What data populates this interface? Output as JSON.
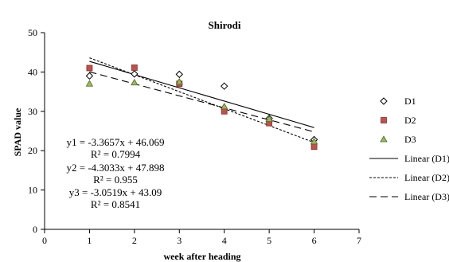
{
  "chart_data": {
    "type": "scatter",
    "title": "Shirodi",
    "xlabel": "week after heading",
    "ylabel": "SPAD value",
    "xlim": [
      0,
      7
    ],
    "ylim": [
      0,
      50
    ],
    "x_ticks": [
      0,
      1,
      2,
      3,
      4,
      5,
      6,
      7
    ],
    "y_ticks": [
      0,
      10,
      20,
      30,
      40,
      50
    ],
    "grid": false,
    "legend_position": "right",
    "series": [
      {
        "name": "D1",
        "marker": "diamond",
        "color": "#ffffff",
        "stroke": "#000000",
        "x": [
          1,
          2,
          3,
          4,
          5,
          6
        ],
        "y": [
          39.0,
          39.5,
          39.4,
          36.4,
          28.2,
          22.8
        ]
      },
      {
        "name": "D2",
        "marker": "square",
        "color": "#c0504d",
        "stroke": "#8b2f2c",
        "x": [
          1,
          2,
          3,
          4,
          5,
          6
        ],
        "y": [
          41.0,
          41.1,
          37.0,
          30.0,
          27.0,
          21.0
        ]
      },
      {
        "name": "D3",
        "marker": "triangle",
        "color": "#9bbb59",
        "stroke": "#4f6228",
        "x": [
          1,
          2,
          3,
          4,
          5,
          6
        ],
        "y": [
          37.0,
          37.3,
          37.5,
          31.2,
          28.0,
          22.3
        ]
      }
    ],
    "trendlines": [
      {
        "name": "Linear (D1)",
        "dash": "solid",
        "slope": -3.3657,
        "intercept": 46.069,
        "x_range": [
          1,
          6
        ]
      },
      {
        "name": "Linear (D2)",
        "dash": "dotted",
        "slope": -4.3033,
        "intercept": 47.898,
        "x_range": [
          1,
          6
        ]
      },
      {
        "name": "Linear (D3)",
        "dash": "dashed",
        "slope": -3.0519,
        "intercept": 43.09,
        "x_range": [
          1,
          6
        ]
      }
    ],
    "annotations": [
      {
        "eq": "y1 = -3.3657x + 46.069",
        "r2": "R² = 0.7994"
      },
      {
        "eq": "y2 = -4.3033x + 47.898",
        "r2": "R² = 0.955"
      },
      {
        "eq": "y3 = -3.0519x + 43.09",
        "r2": "R² = 0.8541"
      }
    ]
  }
}
